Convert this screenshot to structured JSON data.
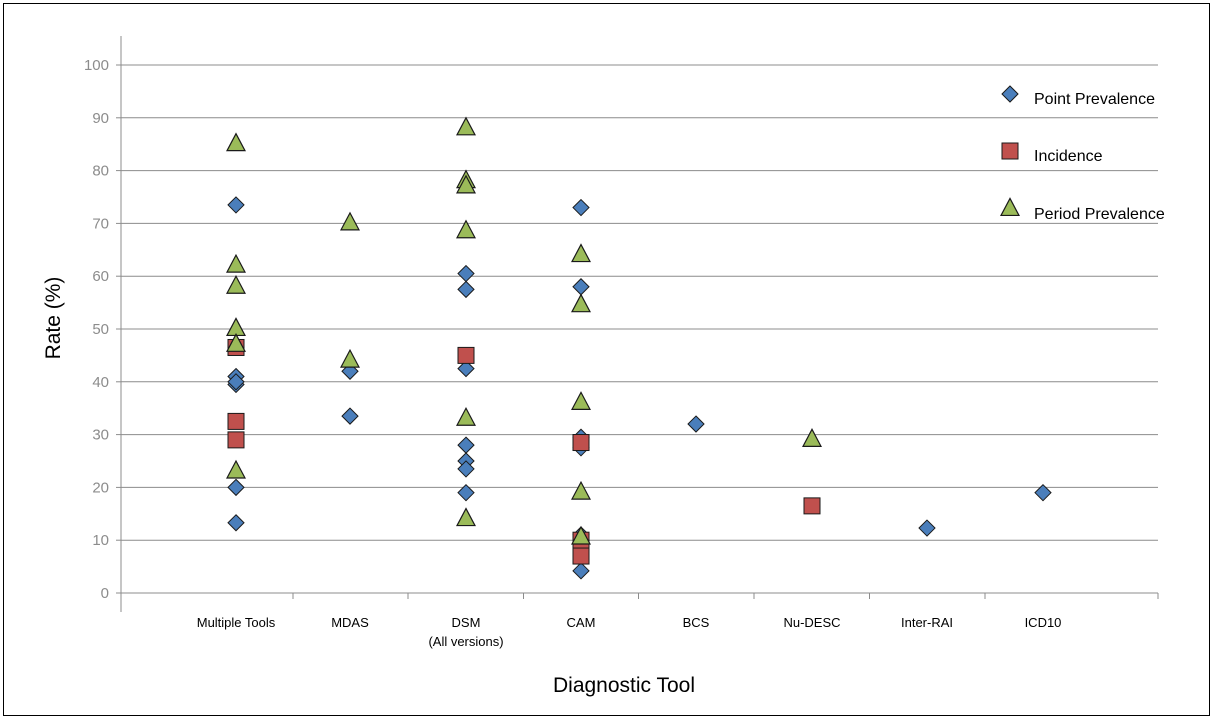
{
  "chart_data": {
    "type": "scatter",
    "xlabel": "Diagnostic Tool",
    "ylabel": "Rate (%)",
    "ylim": [
      0,
      100
    ],
    "yticks": [
      0,
      10,
      20,
      30,
      40,
      50,
      60,
      70,
      80,
      90,
      100
    ],
    "grid": "horizontal",
    "legend_position": "top-right",
    "categories": [
      [
        "Multiple Tools"
      ],
      [
        "MDAS"
      ],
      [
        "DSM",
        "(All versions)"
      ],
      [
        "CAM"
      ],
      [
        "BCS"
      ],
      [
        "Nu-DESC"
      ],
      [
        "Inter-RAI"
      ],
      [
        "ICD10"
      ]
    ],
    "series": [
      {
        "name": "Point Prevalence",
        "marker": "diamond",
        "color": "#4a7ebb",
        "points": [
          [
            "Multiple Tools",
            73.5
          ],
          [
            "Multiple Tools",
            41
          ],
          [
            "Multiple Tools",
            39.5
          ],
          [
            "Multiple Tools",
            40
          ],
          [
            "Multiple Tools",
            20
          ],
          [
            "Multiple Tools",
            13.3
          ],
          [
            "MDAS",
            42
          ],
          [
            "MDAS",
            33.5
          ],
          [
            "DSM",
            60.5
          ],
          [
            "DSM",
            57.5
          ],
          [
            "DSM",
            42.5
          ],
          [
            "DSM",
            28
          ],
          [
            "DSM",
            25
          ],
          [
            "DSM",
            23.5
          ],
          [
            "DSM",
            19
          ],
          [
            "CAM",
            73
          ],
          [
            "CAM",
            58
          ],
          [
            "CAM",
            29.5
          ],
          [
            "CAM",
            27.5
          ],
          [
            "CAM",
            11
          ],
          [
            "CAM",
            4.2
          ],
          [
            "BCS",
            32
          ],
          [
            "Inter-RAI",
            12.3
          ],
          [
            "ICD10",
            19
          ]
        ]
      },
      {
        "name": "Incidence",
        "marker": "square",
        "color": "#c0504d",
        "points": [
          [
            "Multiple Tools",
            46.5
          ],
          [
            "Multiple Tools",
            32.5
          ],
          [
            "Multiple Tools",
            29
          ],
          [
            "DSM",
            45
          ],
          [
            "CAM",
            28.5
          ],
          [
            "CAM",
            10
          ],
          [
            "CAM",
            8.5
          ],
          [
            "CAM",
            7
          ],
          [
            "Nu-DESC",
            16.5
          ]
        ]
      },
      {
        "name": "Period Prevalence",
        "marker": "triangle",
        "color": "#9bbb59",
        "points": [
          [
            "Multiple Tools",
            85
          ],
          [
            "Multiple Tools",
            62
          ],
          [
            "Multiple Tools",
            58
          ],
          [
            "Multiple Tools",
            50
          ],
          [
            "Multiple Tools",
            47
          ],
          [
            "Multiple Tools",
            23
          ],
          [
            "MDAS",
            70
          ],
          [
            "MDAS",
            44
          ],
          [
            "DSM",
            88
          ],
          [
            "DSM",
            78
          ],
          [
            "DSM",
            77
          ],
          [
            "DSM",
            68.5
          ],
          [
            "DSM",
            33
          ],
          [
            "DSM",
            14
          ],
          [
            "CAM",
            64
          ],
          [
            "CAM",
            54.5
          ],
          [
            "CAM",
            36
          ],
          [
            "CAM",
            19
          ],
          [
            "CAM",
            10.5
          ],
          [
            "Nu-DESC",
            29
          ]
        ]
      }
    ]
  }
}
